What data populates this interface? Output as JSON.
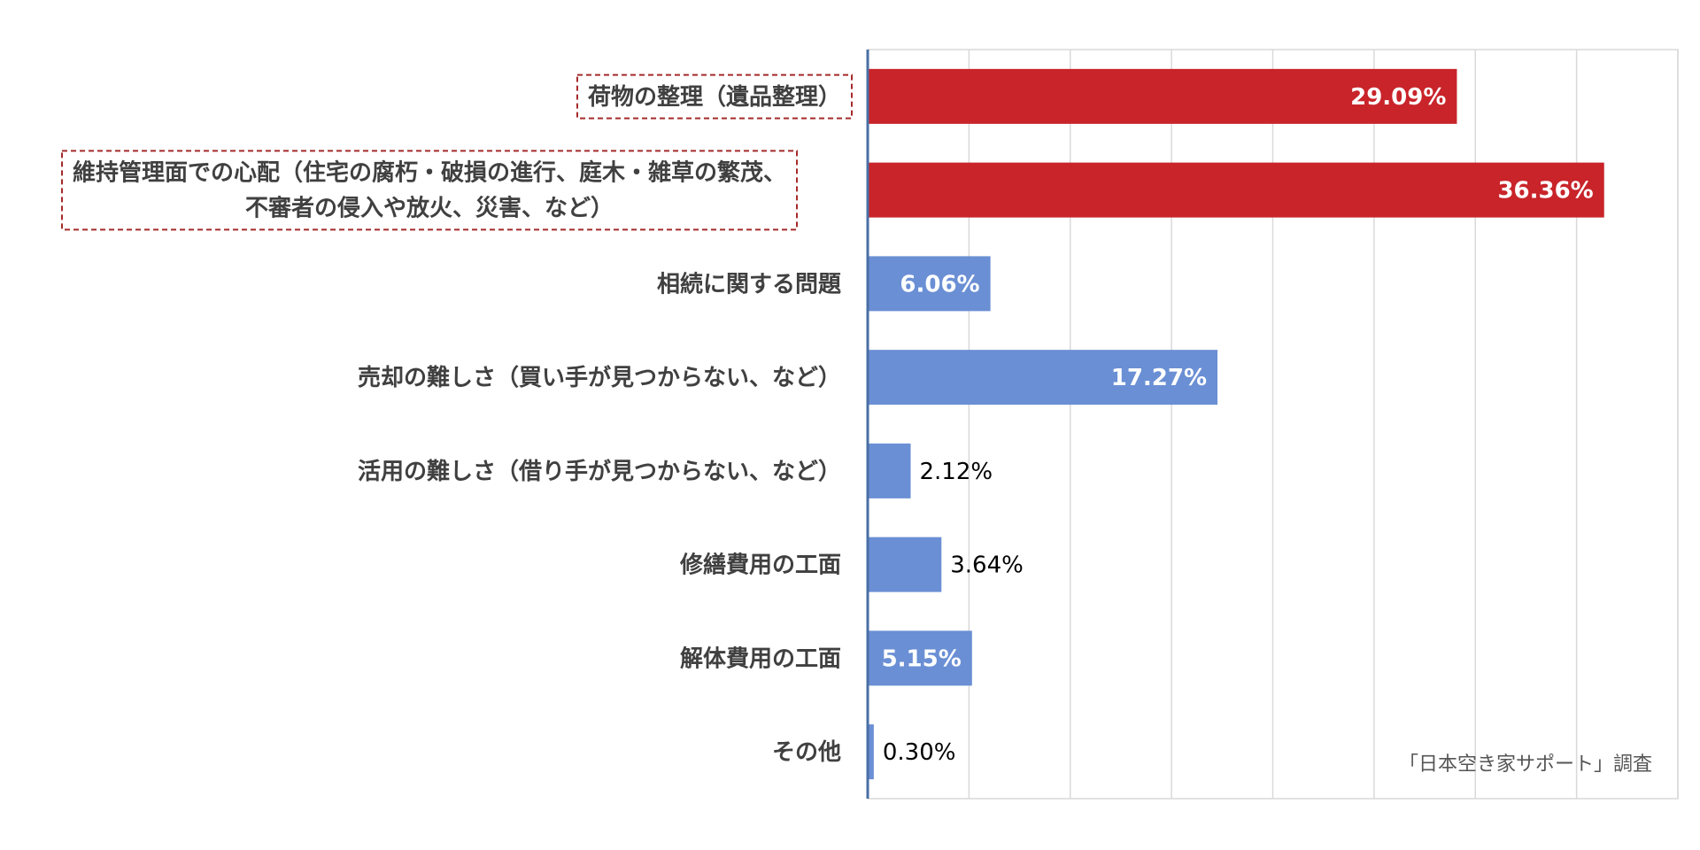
{
  "chart_data": {
    "type": "bar",
    "orientation": "horizontal",
    "categories": [
      "荷物の整理（遺品整理）",
      "維持管理面での心配（住宅の腐朽・破損の進行、庭木・雑草の繁茂、不審者の侵入や放火、災害、など）",
      "相続に関する問題",
      "売却の難しさ（買い手が見つからない、など）",
      "活用の難しさ（借り手が見つからない、など）",
      "修繕費用の工面",
      "解体費用の工面",
      "その他"
    ],
    "category_lines": [
      [
        "荷物の整理（遺品整理）"
      ],
      [
        "維持管理面での心配（住宅の腐朽・破損の進行、庭木・雑草の繁茂、",
        "不審者の侵入や放火、災害、など）"
      ],
      [
        "相続に関する問題"
      ],
      [
        "売却の難しさ（買い手が見つからない、など）"
      ],
      [
        "活用の難しさ（借り手が見つからない、など）"
      ],
      [
        "修繕費用の工面"
      ],
      [
        "解体費用の工面"
      ],
      [
        "その他"
      ]
    ],
    "values": [
      29.09,
      36.36,
      6.06,
      17.27,
      2.12,
      3.64,
      5.15,
      0.3
    ],
    "value_labels": [
      "29.09%",
      "36.36%",
      "6.06%",
      "17.27%",
      "2.12%",
      "3.64%",
      "5.15%",
      "0.30%"
    ],
    "highlighted": [
      true,
      true,
      false,
      false,
      false,
      false,
      false,
      false
    ],
    "label_inside": [
      true,
      true,
      true,
      true,
      false,
      false,
      true,
      false
    ],
    "xlim": [
      0,
      40
    ],
    "grid": true,
    "colors": {
      "highlight": "#c8242a",
      "normal": "#6a8fd4",
      "box_border": "#a52a2a",
      "grid": "#d9d9d9",
      "axis": "#4a6fa5"
    }
  },
  "source_note": "「日本空き家サポート」調査"
}
